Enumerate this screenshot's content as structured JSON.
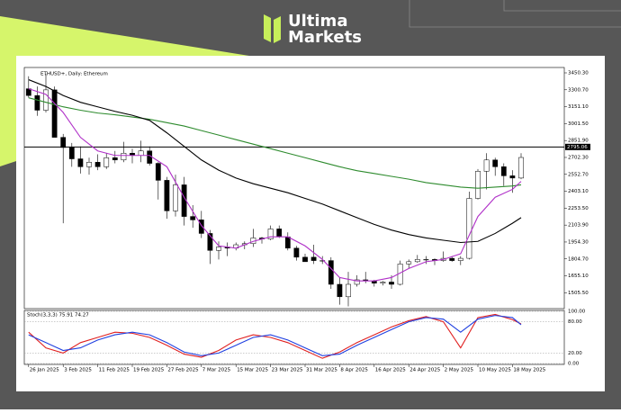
{
  "brand": [
    "Ultima",
    "Markets"
  ],
  "chart_data": {
    "type": "candlestick",
    "title": "ETHUSD+, Daily: Ethereum",
    "x": [
      "26 Jan 2025",
      "28 Jan 2025",
      "30 Jan 2025",
      "1 Feb 2025",
      "3 Feb 2025",
      "5 Feb 2025",
      "7 Feb 2025",
      "9 Feb 2025",
      "11 Feb 2025",
      "13 Feb 2025",
      "15 Feb 2025",
      "17 Feb 2025",
      "19 Feb 2025",
      "21 Feb 2025",
      "23 Feb 2025",
      "25 Feb 2025",
      "27 Feb 2025",
      "1 Mar 2025",
      "3 Mar 2025",
      "5 Mar 2025",
      "7 Mar 2025",
      "9 Mar 2025",
      "11 Mar 2025",
      "13 Mar 2025",
      "15 Mar 2025",
      "17 Mar 2025",
      "19 Mar 2025",
      "21 Mar 2025",
      "23 Mar 2025",
      "25 Mar 2025",
      "27 Mar 2025",
      "29 Mar 2025",
      "31 Mar 2025",
      "2 Apr 2025",
      "4 Apr 2025",
      "6 Apr 2025",
      "8 Apr 2025",
      "10 Apr 2025",
      "12 Apr 2025",
      "14 Apr 2025",
      "16 Apr 2025",
      "18 Apr 2025",
      "20 Apr 2025",
      "22 Apr 2025",
      "24 Apr 2025",
      "26 Apr 2025",
      "28 Apr 2025",
      "30 Apr 2025",
      "2 May 2025",
      "4 May 2025",
      "6 May 2025",
      "8 May 2025",
      "10 May 2025",
      "12 May 2025",
      "14 May 2025",
      "16 May 2025",
      "18 May 2025",
      "20 May 2025"
    ],
    "open": [
      3310,
      3250,
      3120,
      3300,
      2880,
      2790,
      2690,
      2620,
      2660,
      2620,
      2700,
      2680,
      2740,
      2720,
      2760,
      2650,
      2500,
      2230,
      2460,
      2180,
      2150,
      2030,
      1880,
      1910,
      1900,
      1930,
      1940,
      1990,
      1980,
      2070,
      2000,
      1900,
      1820,
      1820,
      1790,
      1790,
      1580,
      1470,
      1580,
      1620,
      1610,
      1590,
      1600,
      1580,
      1760,
      1780,
      1800,
      1800,
      1790,
      1810,
      1790,
      1810,
      2340,
      2580,
      2680,
      2620,
      2540,
      2520
    ],
    "high": [
      3420,
      3330,
      3440,
      3330,
      2910,
      2830,
      2800,
      2700,
      2730,
      2740,
      2760,
      2840,
      2780,
      2850,
      2800,
      2660,
      2530,
      2550,
      2530,
      2280,
      2230,
      2060,
      1960,
      1950,
      1950,
      1960,
      2070,
      2000,
      2100,
      2100,
      2040,
      1920,
      1850,
      1930,
      1830,
      1820,
      1640,
      1690,
      1660,
      1690,
      1620,
      1610,
      1660,
      1790,
      1800,
      1840,
      1830,
      1810,
      1870,
      1830,
      1830,
      2400,
      2600,
      2740,
      2700,
      2650,
      2590,
      2740
    ],
    "low": [
      3230,
      3070,
      3100,
      2900,
      2120,
      2620,
      2560,
      2550,
      2590,
      2600,
      2650,
      2660,
      2650,
      2660,
      2630,
      2330,
      2160,
      2180,
      2100,
      2080,
      1990,
      1760,
      1800,
      1830,
      1880,
      1890,
      1910,
      1940,
      1970,
      1990,
      1880,
      1790,
      1780,
      1760,
      1760,
      1540,
      1400,
      1385,
      1560,
      1590,
      1560,
      1570,
      1540,
      1570,
      1720,
      1770,
      1760,
      1750,
      1780,
      1780,
      1750,
      1800,
      2330,
      2420,
      2540,
      2450,
      2390,
      2510
    ],
    "close": [
      3250,
      3120,
      3300,
      2880,
      2790,
      2690,
      2620,
      2660,
      2620,
      2700,
      2680,
      2740,
      2720,
      2760,
      2650,
      2500,
      2230,
      2460,
      2180,
      2150,
      2030,
      1880,
      1910,
      1900,
      1930,
      1940,
      1990,
      1980,
      2070,
      2000,
      1900,
      1820,
      1780,
      1790,
      1790,
      1580,
      1470,
      1580,
      1620,
      1610,
      1590,
      1600,
      1580,
      1760,
      1780,
      1800,
      1800,
      1790,
      1810,
      1790,
      1810,
      2340,
      2580,
      2680,
      2620,
      2540,
      2520,
      2702
    ],
    "up_color": "#ffffff",
    "down_color": "#000000",
    "edge_color": "#000000",
    "overlays": {
      "x": [
        "26 Jan 2025",
        "30 Jan 2025",
        "3 Feb 2025",
        "7 Feb 2025",
        "11 Feb 2025",
        "15 Feb 2025",
        "19 Feb 2025",
        "23 Feb 2025",
        "27 Feb 2025",
        "3 Mar 2025",
        "7 Mar 2025",
        "11 Mar 2025",
        "15 Mar 2025",
        "19 Mar 2025",
        "23 Mar 2025",
        "27 Mar 2025",
        "31 Mar 2025",
        "4 Apr 2025",
        "8 Apr 2025",
        "12 Apr 2025",
        "16 Apr 2025",
        "20 Apr 2025",
        "24 Apr 2025",
        "28 Apr 2025",
        "2 May 2025",
        "6 May 2025",
        "10 May 2025",
        "14 May 2025",
        "18 May 2025",
        "20 May 2025"
      ],
      "series": [
        {
          "color": "#2e8b2e",
          "values": [
            3230,
            3190,
            3150,
            3120,
            3095,
            3080,
            3060,
            3040,
            3010,
            2980,
            2940,
            2900,
            2860,
            2820,
            2780,
            2740,
            2700,
            2660,
            2620,
            2585,
            2560,
            2535,
            2510,
            2480,
            2460,
            2440,
            2430,
            2440,
            2450,
            2460
          ]
        },
        {
          "color": "#000000",
          "values": [
            3390,
            3330,
            3250,
            3190,
            3150,
            3110,
            3075,
            3030,
            2920,
            2800,
            2680,
            2590,
            2520,
            2470,
            2430,
            2390,
            2340,
            2290,
            2230,
            2170,
            2110,
            2060,
            2020,
            1990,
            1970,
            1950,
            1960,
            2030,
            2120,
            2170
          ]
        },
        {
          "color": "#b030c8",
          "values": [
            3310,
            3260,
            3100,
            2880,
            2760,
            2720,
            2720,
            2720,
            2620,
            2350,
            2100,
            1920,
            1900,
            1960,
            2000,
            2000,
            1920,
            1800,
            1640,
            1610,
            1610,
            1640,
            1720,
            1780,
            1800,
            1850,
            2180,
            2350,
            2420,
            2490
          ]
        }
      ]
    },
    "hline": 2795.06,
    "xlim": [
      "25 Jan 2025",
      "30 May 2025"
    ],
    "xticks": [
      "26 Jan 2025",
      "3 Feb 2025",
      "11 Feb 2025",
      "19 Feb 2025",
      "27 Feb 2025",
      "7 Mar 2025",
      "15 Mar 2025",
      "23 Mar 2025",
      "31 Mar 2025",
      "8 Apr 2025",
      "16 Apr 2025",
      "24 Apr 2025",
      "2 May 2025",
      "10 May 2025",
      "18 May 2025"
    ],
    "ylim": [
      1365,
      3498
    ],
    "yticks": [
      {
        "value": 3450.3,
        "label": "3450.30"
      },
      {
        "value": 3300.7,
        "label": "3300.70"
      },
      {
        "value": 3151.1,
        "label": "3151.10"
      },
      {
        "value": 3001.5,
        "label": "3001.50"
      },
      {
        "value": 2851.9,
        "label": "2851.90"
      },
      {
        "value": 2702.3,
        "label": "2702.30"
      },
      {
        "value": 2552.7,
        "label": "2552.70"
      },
      {
        "value": 2403.1,
        "label": "2403.10"
      },
      {
        "value": 2253.5,
        "label": "2253.50"
      },
      {
        "value": 2103.9,
        "label": "2103.90"
      },
      {
        "value": 1954.3,
        "label": "1954.30"
      },
      {
        "value": 1804.7,
        "label": "1804.70"
      },
      {
        "value": 1655.1,
        "label": "1655.10"
      },
      {
        "value": 1505.5,
        "label": "1505.50"
      }
    ],
    "stoch": {
      "title": "Stoch(3,3,3) 75.91 74.27",
      "ylim": [
        0,
        100
      ],
      "yticks": [
        {
          "value": 100,
          "label": "100.00"
        },
        {
          "value": 80,
          "label": "80.00"
        },
        {
          "value": 20,
          "label": "20.00"
        },
        {
          "value": 0,
          "label": "0.00"
        }
      ],
      "series": [
        {
          "color": "#e02020",
          "values": [
            60,
            30,
            20,
            40,
            50,
            60,
            58,
            50,
            35,
            18,
            12,
            25,
            45,
            55,
            50,
            40,
            25,
            10,
            22,
            40,
            55,
            70,
            82,
            90,
            80,
            30,
            88,
            94,
            84,
            75.91
          ]
        },
        {
          "color": "#2040e0",
          "values": [
            55,
            40,
            25,
            30,
            45,
            55,
            60,
            55,
            40,
            22,
            15,
            20,
            35,
            50,
            55,
            45,
            30,
            15,
            18,
            35,
            50,
            65,
            80,
            88,
            85,
            60,
            85,
            92,
            88,
            74.27
          ]
        }
      ]
    }
  }
}
